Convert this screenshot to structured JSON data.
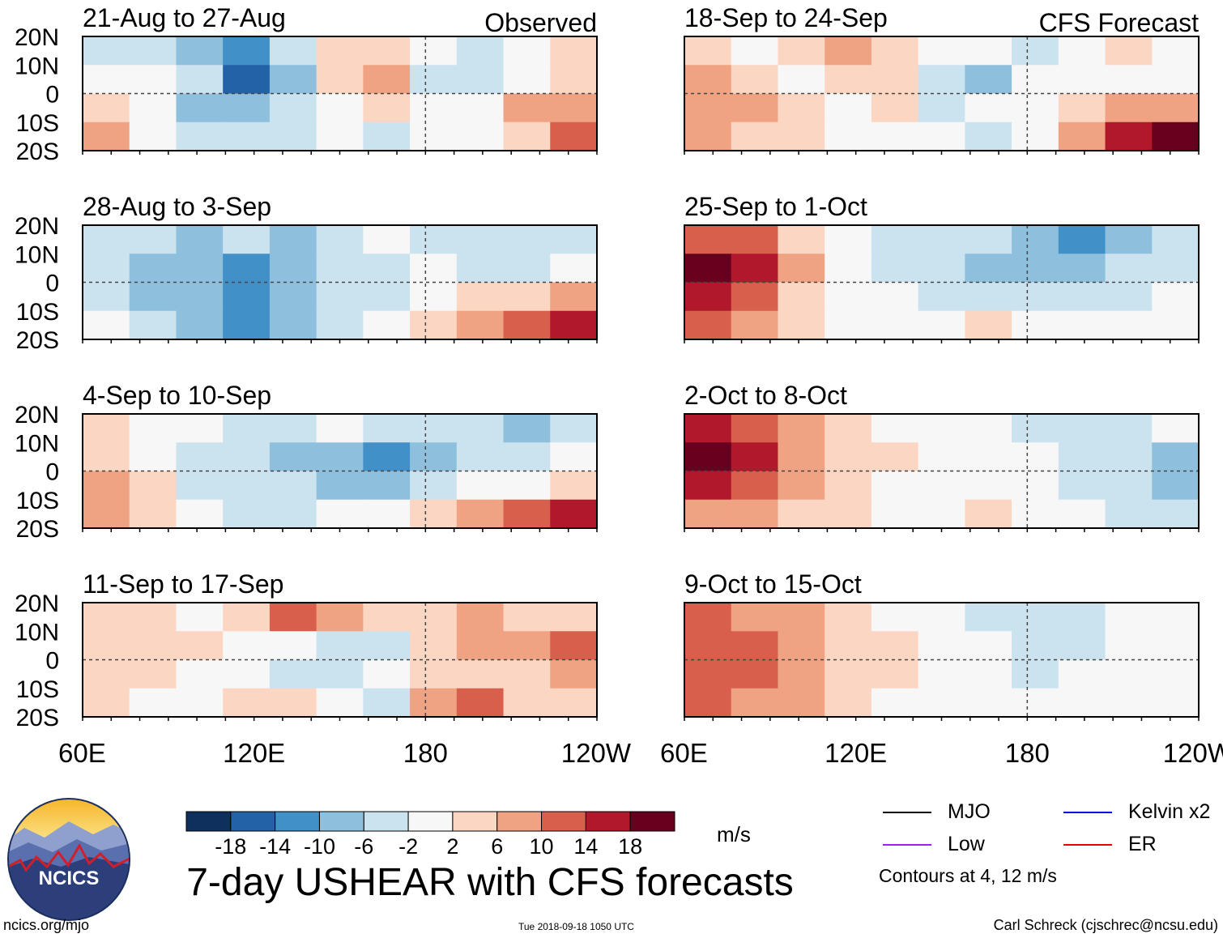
{
  "header": {
    "observed_label": "Observed",
    "forecast_label": "CFS Forecast"
  },
  "chart_data": {
    "type": "heatmap",
    "title": "7-day USHEAR with CFS forecasts",
    "variable": "USHEAR",
    "units": "m/s",
    "x_range_deg_east": [
      60,
      240
    ],
    "y_range_deg_north": [
      -20,
      20
    ],
    "x_tick_labels": [
      "60E",
      "120E",
      "180",
      "120W"
    ],
    "y_tick_labels": [
      "20N",
      "10N",
      "0",
      "10S",
      "20S"
    ],
    "colorbar": {
      "tick_labels": [
        "-18",
        "-14",
        "-10",
        "-6",
        "-2",
        "2",
        "6",
        "10",
        "14",
        "18"
      ],
      "bins": [
        {
          "range": "< -18",
          "color": "#0f2f5c"
        },
        {
          "range": "-18 to -14",
          "color": "#2362a6"
        },
        {
          "range": "-14 to -10",
          "color": "#4190c7"
        },
        {
          "range": "-10 to -6",
          "color": "#8ec0de"
        },
        {
          "range": "-6 to -2",
          "color": "#cbe2ef"
        },
        {
          "range": "-2 to 2",
          "color": "#f7f7f7"
        },
        {
          "range": "2 to 6",
          "color": "#fbd6c3"
        },
        {
          "range": "6 to 10",
          "color": "#f0a383"
        },
        {
          "range": "10 to 14",
          "color": "#d75f4c"
        },
        {
          "range": "14 to 18",
          "color": "#b1182b"
        },
        {
          "range": "> 18",
          "color": "#67001f"
        }
      ]
    },
    "panels": [
      {
        "id": "obs-1",
        "period": "21-Aug to 27-Aug",
        "source": "Observed",
        "mean_shear_m_s": [
          [
            -3,
            -4,
            -8,
            -12,
            -6,
            2,
            5,
            -2,
            -3,
            1,
            2
          ],
          [
            0,
            -2,
            -6,
            -16,
            -8,
            3,
            8,
            -3,
            -5,
            -1,
            3
          ],
          [
            4,
            -2,
            -8,
            -10,
            -5,
            -1,
            2,
            0,
            -2,
            6,
            8
          ],
          [
            6,
            -1,
            -4,
            -6,
            -3,
            -2,
            -4,
            -2,
            0,
            3,
            10
          ]
        ]
      },
      {
        "id": "obs-2",
        "period": "28-Aug to 3-Sep",
        "source": "Observed",
        "mean_shear_m_s": [
          [
            -3,
            -5,
            -7,
            -5,
            -8,
            -4,
            -2,
            -3,
            -6,
            -4,
            -3
          ],
          [
            -5,
            -8,
            -10,
            -12,
            -10,
            -6,
            -3,
            -2,
            -6,
            -3,
            -2
          ],
          [
            -4,
            -7,
            -10,
            -12,
            -9,
            -5,
            -3,
            0,
            2,
            4,
            6
          ],
          [
            -2,
            -5,
            -8,
            -14,
            -8,
            -4,
            -2,
            3,
            9,
            12,
            14
          ]
        ]
      },
      {
        "id": "obs-3",
        "period": "4-Sep to 10-Sep",
        "source": "Observed",
        "mean_shear_m_s": [
          [
            2,
            0,
            -2,
            -3,
            -4,
            -1,
            -3,
            -5,
            -6,
            -8,
            -4
          ],
          [
            4,
            0,
            -4,
            -6,
            -8,
            -10,
            -12,
            -8,
            -5,
            -4,
            -2
          ],
          [
            6,
            2,
            -3,
            -5,
            -6,
            -8,
            -7,
            -4,
            -2,
            0,
            2
          ],
          [
            8,
            3,
            -2,
            -3,
            -3,
            -2,
            0,
            2,
            6,
            12,
            14
          ]
        ]
      },
      {
        "id": "obs-4",
        "period": "11-Sep to 17-Sep",
        "source": "Observed",
        "mean_shear_m_s": [
          [
            3,
            2,
            0,
            4,
            12,
            6,
            2,
            4,
            6,
            3,
            2
          ],
          [
            4,
            3,
            2,
            1,
            -2,
            -6,
            -4,
            2,
            8,
            6,
            12
          ],
          [
            5,
            2,
            0,
            -2,
            -4,
            -3,
            0,
            4,
            5,
            3,
            8
          ],
          [
            2,
            0,
            -2,
            3,
            4,
            -2,
            -4,
            6,
            10,
            2,
            4
          ]
        ]
      },
      {
        "id": "fcst-1",
        "period": "18-Sep to 24-Sep",
        "source": "CFS Forecast",
        "mean_shear_m_s": [
          [
            4,
            -2,
            2,
            6,
            3,
            -2,
            0,
            -3,
            -2,
            2,
            -2
          ],
          [
            6,
            4,
            0,
            4,
            3,
            -6,
            -10,
            -2,
            0,
            -2,
            0
          ],
          [
            8,
            6,
            2,
            0,
            2,
            -4,
            -2,
            0,
            4,
            6,
            8
          ],
          [
            6,
            4,
            2,
            0,
            -2,
            -2,
            -3,
            0,
            6,
            14,
            18
          ]
        ]
      },
      {
        "id": "fcst-2",
        "period": "25-Sep to 1-Oct",
        "source": "CFS Forecast",
        "mean_shear_m_s": [
          [
            12,
            10,
            4,
            -2,
            -3,
            -4,
            -6,
            -8,
            -12,
            -10,
            -3
          ],
          [
            18,
            16,
            6,
            -2,
            -4,
            -6,
            -8,
            -10,
            -10,
            -6,
            -4
          ],
          [
            16,
            12,
            4,
            0,
            -2,
            -3,
            -4,
            -4,
            -3,
            -3,
            -2
          ],
          [
            10,
            8,
            2,
            0,
            -2,
            0,
            2,
            1,
            0,
            0,
            -2
          ]
        ]
      },
      {
        "id": "fcst-3",
        "period": "2-Oct to 8-Oct",
        "source": "CFS Forecast",
        "mean_shear_m_s": [
          [
            16,
            12,
            6,
            2,
            0,
            -2,
            -2,
            -4,
            -6,
            -3,
            -2
          ],
          [
            20,
            16,
            8,
            4,
            2,
            0,
            -1,
            -2,
            -4,
            -6,
            -8
          ],
          [
            14,
            10,
            6,
            3,
            1,
            0,
            0,
            -2,
            -3,
            -6,
            -10
          ],
          [
            8,
            6,
            4,
            2,
            0,
            0,
            2,
            0,
            -2,
            -4,
            -6
          ]
        ]
      },
      {
        "id": "fcst-4",
        "period": "9-Oct to 15-Oct",
        "source": "CFS Forecast",
        "mean_shear_m_s": [
          [
            10,
            8,
            6,
            2,
            0,
            -2,
            -3,
            -4,
            -3,
            -2,
            -2
          ],
          [
            12,
            10,
            8,
            4,
            2,
            0,
            -2,
            -4,
            -4,
            -2,
            0
          ],
          [
            12,
            10,
            8,
            4,
            2,
            0,
            -2,
            -3,
            -2,
            -1,
            0
          ],
          [
            10,
            8,
            6,
            3,
            1,
            0,
            -1,
            -2,
            -2,
            -1,
            0
          ]
        ]
      }
    ],
    "contour_legend": [
      {
        "label": "MJO",
        "color": "#000000"
      },
      {
        "label": "Kelvin x2",
        "color": "#0000ee"
      },
      {
        "label": "Low",
        "color": "#a020f0"
      },
      {
        "label": "ER",
        "color": "#ee0000"
      }
    ],
    "contour_note": "Contours at 4, 12 m/s"
  },
  "logo": {
    "text": "NCICS"
  },
  "footer": {
    "website": "ncics.org/mjo",
    "timestamp": "Tue 2018-09-18 1050 UTC",
    "credit": "Carl Schreck (cjschrec@ncsu.edu)"
  }
}
